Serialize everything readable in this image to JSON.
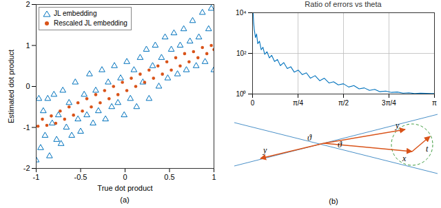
{
  "chart_data": [
    {
      "type": "scatter",
      "caption": "(a)",
      "x_label": "True dot product",
      "y_label": "Estimated dot product",
      "xlim": [
        -1,
        1
      ],
      "xticks": [
        -1,
        -0.5,
        0,
        0.5,
        1
      ],
      "ylim": [
        -2,
        2
      ],
      "yticks": [
        -2,
        -1,
        0,
        1,
        2
      ],
      "grid": false,
      "legend": "upper left",
      "series": [
        {
          "name": "JL embedding",
          "color": "#0072bd",
          "marker": "triangle",
          "x": [
            -1,
            -0.97,
            -0.95,
            -0.92,
            -0.9,
            -0.87,
            -0.85,
            -0.82,
            -0.8,
            -0.77,
            -0.75,
            -0.72,
            -0.7,
            -0.66,
            -0.63,
            -0.6,
            -0.56,
            -0.53,
            -0.5,
            -0.46,
            -0.43,
            -0.4,
            -0.36,
            -0.33,
            -0.3,
            -0.26,
            -0.22,
            -0.19,
            -0.15,
            -0.12,
            -0.08,
            -0.05,
            -0.01,
            0.02,
            0.06,
            0.1,
            0.13,
            0.17,
            0.2,
            0.24,
            0.27,
            0.31,
            0.34,
            0.38,
            0.41,
            0.45,
            0.48,
            0.52,
            0.55,
            0.59,
            0.62,
            0.66,
            0.69,
            0.73,
            0.76,
            0.8,
            0.83,
            0.87,
            0.9,
            0.94,
            0.97,
            1
          ],
          "values": [
            -1.8,
            -0.3,
            -1.5,
            -0.6,
            -1.2,
            -0.3,
            -1.7,
            -0.9,
            -0.2,
            -1.3,
            -0.7,
            -1.4,
            -0.1,
            -1.0,
            -0.4,
            -1.2,
            0.1,
            -0.8,
            -1.1,
            -0.2,
            -0.7,
            0.3,
            -0.9,
            -0.1,
            -0.6,
            0.4,
            -0.8,
            0.1,
            -0.5,
            0.5,
            -0.4,
            0.2,
            -0.7,
            0.6,
            -0.3,
            0.4,
            -0.5,
            0.7,
            0.1,
            0.9,
            -0.3,
            0.5,
            1.0,
            0.0,
            0.7,
            1.2,
            0.2,
            0.9,
            1.3,
            0.3,
            1.0,
            1.4,
            0.4,
            1.1,
            1.6,
            0.5,
            1.2,
            1.8,
            0.6,
            1.4,
            1.9,
            0.4
          ]
        },
        {
          "name": "Rescaled JL embedding",
          "color": "#d95319",
          "marker": "circle",
          "x": [
            -0.98,
            -0.93,
            -0.88,
            -0.83,
            -0.78,
            -0.73,
            -0.68,
            -0.63,
            -0.58,
            -0.53,
            -0.48,
            -0.43,
            -0.38,
            -0.33,
            -0.28,
            -0.23,
            -0.18,
            -0.13,
            -0.08,
            -0.03,
            0.02,
            0.07,
            0.12,
            0.17,
            0.22,
            0.27,
            0.32,
            0.37,
            0.42,
            0.47,
            0.52,
            0.57,
            0.62,
            0.67,
            0.72,
            0.77,
            0.82,
            0.87,
            0.92,
            0.97,
            1.0
          ],
          "values": [
            -0.97,
            -0.8,
            -0.95,
            -0.72,
            -0.9,
            -0.6,
            -0.8,
            -0.5,
            -0.7,
            -0.4,
            -0.6,
            -0.3,
            -0.5,
            -0.2,
            -0.4,
            -0.1,
            -0.3,
            0.0,
            -0.2,
            0.1,
            -0.1,
            0.2,
            0.0,
            0.3,
            0.1,
            0.4,
            0.2,
            0.5,
            0.3,
            0.6,
            0.4,
            0.7,
            0.5,
            0.8,
            0.6,
            0.85,
            0.7,
            0.95,
            0.8,
            1.0,
            0.9
          ]
        }
      ]
    },
    {
      "type": "line",
      "title": "Ratio of errors vs theta",
      "log": "y",
      "grid": true,
      "xlim": [
        0,
        3.1416
      ],
      "xticks": [
        0,
        {
          "value": 0.7854,
          "label": "π/4"
        },
        {
          "value": 1.5708,
          "label": "π/2"
        },
        {
          "value": 2.3562,
          "label": "3π/4"
        },
        {
          "value": 3.1416,
          "label": "π"
        }
      ],
      "ylim": [
        1,
        10000
      ],
      "yticks": [
        {
          "value": 1,
          "label": "10⁰"
        },
        {
          "value": 100,
          "label": "10²"
        },
        {
          "value": 10000,
          "label": "10⁴"
        }
      ],
      "x": [
        0.01,
        0.02,
        0.03,
        0.05,
        0.07,
        0.09,
        0.12,
        0.15,
        0.18,
        0.21,
        0.25,
        0.29,
        0.33,
        0.38,
        0.43,
        0.48,
        0.54,
        0.6,
        0.66,
        0.72,
        0.79,
        0.86,
        0.93,
        1.0,
        1.08,
        1.16,
        1.24,
        1.32,
        1.4,
        1.48,
        1.57,
        1.66,
        1.75,
        1.84,
        1.93,
        2.02,
        2.11,
        2.2,
        2.3,
        2.4,
        2.5,
        2.6,
        2.7,
        2.8,
        2.9,
        3.0,
        3.1,
        3.14
      ],
      "values": [
        10000,
        3000,
        1500,
        600,
        900,
        300,
        400,
        150,
        200,
        90,
        120,
        60,
        80,
        40,
        50,
        25,
        35,
        18,
        22,
        12,
        15,
        9,
        11,
        6,
        8,
        4.5,
        6,
        3.5,
        4,
        2.8,
        3.2,
        2.2,
        2.6,
        1.8,
        2,
        1.5,
        1.7,
        1.3,
        1.4,
        1.2,
        1.25,
        1.1,
        1.15,
        1.05,
        1.1,
        1.08,
        1.05,
        1.05
      ],
      "color": "#0072bd"
    }
  ],
  "diagram": {
    "labels": {
      "y_left": "y",
      "theta_left": "ϑ",
      "theta_right": "ϑ",
      "y_right": "y",
      "x": "x",
      "t": "t"
    },
    "caption": "(b)"
  }
}
